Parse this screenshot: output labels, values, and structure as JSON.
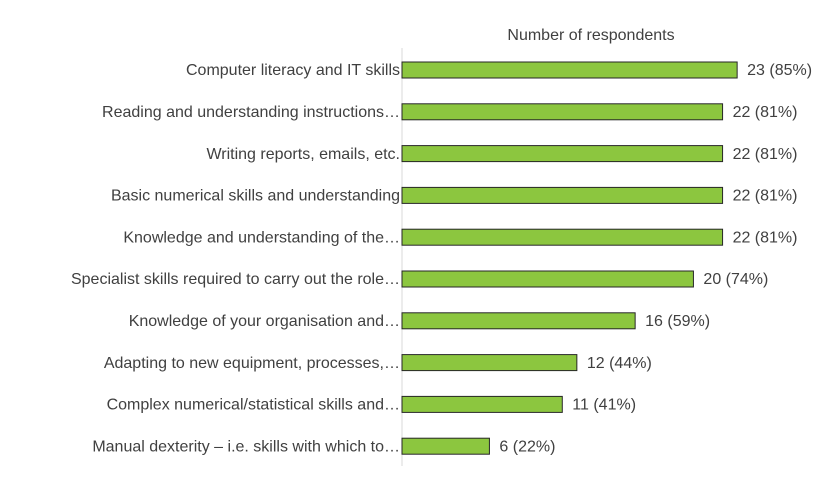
{
  "chart_data": {
    "type": "bar",
    "orientation": "horizontal",
    "title": "Number of respondents",
    "categories": [
      "Computer literacy and IT skills",
      "Reading and understanding instructions…",
      "Writing reports, emails, etc.",
      "Basic numerical skills and understanding",
      "Knowledge and understanding of the…",
      "Specialist skills required to carry out the role…",
      "Knowledge of your organisation and…",
      "Adapting to new equipment, processes,…",
      "Complex numerical/statistical skills and…",
      "Manual dexterity – i.e. skills with which to…"
    ],
    "values": [
      23,
      22,
      22,
      22,
      22,
      20,
      16,
      12,
      11,
      6
    ],
    "value_labels": [
      "23 (85%)",
      "22 (81%)",
      "22 (81%)",
      "22 (81%)",
      "22 (81%)",
      "20 (74%)",
      "16 (59%)",
      "12 (44%)",
      "11 (41%)",
      "6 (22%)"
    ],
    "color": "#8cc63f",
    "xlim": [
      0,
      28
    ]
  }
}
